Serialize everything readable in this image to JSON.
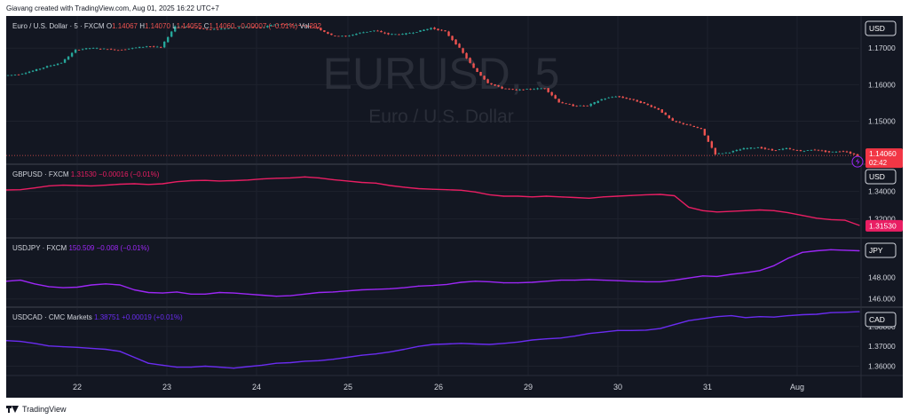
{
  "header": {
    "text": "Giavang created with TradingView.com, Aug 01, 2025 16:22 UTC+7"
  },
  "footer": {
    "brand": "TradingView"
  },
  "colors": {
    "background": "#131722",
    "eurusd": "#787b86",
    "gbpusd": "#e91e63",
    "usdjpy": "#9c27f5",
    "usdcad": "#6a2cf0",
    "up": "#26a69a",
    "down": "#ef5350",
    "grid": "#1e222d",
    "axis_text": "#d1d4dc",
    "badge_border": "#d1d4dc",
    "watermark": "#2a2e39"
  },
  "icons": {
    "logo": "tradingview-logo-icon",
    "countdown": "lightning-icon"
  },
  "chart_data": [
    {
      "type": "line",
      "series_style": "candlestick",
      "legend": {
        "symbol": "Euro / U.S. Dollar · 5 · FXCM",
        "o_label": "O",
        "o": "1.14067",
        "h_label": "H",
        "h": "1.14070",
        "l_label": "L",
        "l": "1.14055",
        "c_label": "C",
        "c": "1.14060",
        "change": "−0.00007 (−0.01%)",
        "vol_label": "Vol",
        "vol": "292"
      },
      "watermark_symbol": "EURUSD, 5",
      "watermark_name": "Euro / U.S. Dollar",
      "currency_badge": "USD",
      "last_price": "1.14060",
      "countdown": "02:42",
      "yticks": [
        "1.17000",
        "1.16000",
        "1.15000"
      ],
      "ylim": [
        1.1382,
        1.1788
      ],
      "values": [
        1.1625,
        1.1628,
        1.1638,
        1.165,
        1.166,
        1.1695,
        1.17,
        1.1698,
        1.1695,
        1.17,
        1.1705,
        1.1702,
        1.176,
        1.1758,
        1.1752,
        1.1752,
        1.1755,
        1.1758,
        1.1755,
        1.1765,
        1.1765,
        1.1762,
        1.1755,
        1.1735,
        1.1732,
        1.1742,
        1.1748,
        1.1738,
        1.1738,
        1.1745,
        1.1755,
        1.1745,
        1.17,
        1.1645,
        1.1605,
        1.159,
        1.1585,
        1.1588,
        1.159,
        1.1552,
        1.1542,
        1.1542,
        1.156,
        1.1568,
        1.156,
        1.1548,
        1.1532,
        1.15,
        1.149,
        1.1478,
        1.141,
        1.1415,
        1.1425,
        1.1428,
        1.142,
        1.1425,
        1.1418,
        1.1422,
        1.1415,
        1.1418,
        1.1406
      ]
    },
    {
      "type": "line",
      "legend": {
        "symbol": "GBPUSD · FXCM",
        "price": "1.31530",
        "change": "−0.00016 (−0.01%)"
      },
      "currency_badge": "USD",
      "last_price": "1.31530",
      "yticks": [
        "1.34000",
        "1.32000"
      ],
      "ylim": [
        1.3062,
        1.3597
      ],
      "values": [
        1.341,
        1.3412,
        1.3425,
        1.344,
        1.3445,
        1.3442,
        1.344,
        1.3445,
        1.3452,
        1.3455,
        1.345,
        1.3455,
        1.347,
        1.3478,
        1.348,
        1.3475,
        1.3478,
        1.3482,
        1.349,
        1.3495,
        1.3498,
        1.3505,
        1.3498,
        1.3485,
        1.3475,
        1.3465,
        1.346,
        1.3442,
        1.343,
        1.342,
        1.3415,
        1.3412,
        1.3408,
        1.3395,
        1.3375,
        1.3365,
        1.3365,
        1.336,
        1.3365,
        1.336,
        1.3355,
        1.335,
        1.336,
        1.3365,
        1.337,
        1.3375,
        1.3378,
        1.3368,
        1.3285,
        1.326,
        1.325,
        1.3255,
        1.326,
        1.3265,
        1.326,
        1.3245,
        1.3225,
        1.3205,
        1.3195,
        1.319,
        1.3153
      ]
    },
    {
      "type": "line",
      "legend": {
        "symbol": "USDJPY · FXCM",
        "price": "150.509",
        "change": "−0.008 (−0.01%)"
      },
      "currency_badge": "JPY",
      "yticks": [
        "148.000",
        "146.000"
      ],
      "ylim": [
        145.23,
        151.7
      ],
      "values": [
        147.65,
        147.75,
        147.4,
        147.15,
        147.05,
        147.1,
        147.3,
        147.4,
        147.3,
        146.85,
        146.6,
        146.55,
        146.65,
        146.45,
        146.45,
        146.6,
        146.55,
        146.45,
        146.35,
        146.25,
        146.3,
        146.45,
        146.6,
        146.65,
        146.75,
        146.85,
        146.9,
        146.95,
        147.05,
        147.2,
        147.25,
        147.35,
        147.55,
        147.65,
        147.6,
        147.5,
        147.5,
        147.55,
        147.65,
        147.75,
        147.75,
        147.8,
        147.75,
        147.7,
        147.65,
        147.6,
        147.6,
        147.75,
        147.95,
        148.15,
        148.1,
        148.3,
        148.45,
        148.65,
        149.1,
        149.8,
        150.35,
        150.5,
        150.6,
        150.55,
        150.5
      ]
    },
    {
      "type": "line",
      "legend": {
        "symbol": "USDCAD · CMC Markets",
        "price": "1.38751",
        "change": "+0.00019 (+0.01%)"
      },
      "currency_badge": "CAD",
      "yticks": [
        "1.38000",
        "1.37000",
        "1.36000"
      ],
      "ylim": [
        1.3553,
        1.3898
      ],
      "values": [
        1.3729,
        1.3725,
        1.3715,
        1.3702,
        1.3698,
        1.3695,
        1.369,
        1.3685,
        1.3675,
        1.3645,
        1.3615,
        1.3605,
        1.3595,
        1.3595,
        1.36,
        1.3595,
        1.359,
        1.3598,
        1.3605,
        1.3615,
        1.3618,
        1.3625,
        1.3628,
        1.3635,
        1.3645,
        1.3655,
        1.3662,
        1.3672,
        1.3685,
        1.37,
        1.371,
        1.3712,
        1.3715,
        1.3712,
        1.371,
        1.3715,
        1.3722,
        1.3732,
        1.3738,
        1.3742,
        1.3752,
        1.3765,
        1.3772,
        1.378,
        1.378,
        1.3782,
        1.379,
        1.381,
        1.383,
        1.384,
        1.385,
        1.3855,
        1.3845,
        1.385,
        1.3848,
        1.3855,
        1.386,
        1.3862,
        1.387,
        1.3872,
        1.3875
      ]
    }
  ],
  "x_axis": {
    "ticks": [
      "22",
      "23",
      "24",
      "25",
      "26",
      "29",
      "30",
      "31",
      "Aug"
    ]
  }
}
